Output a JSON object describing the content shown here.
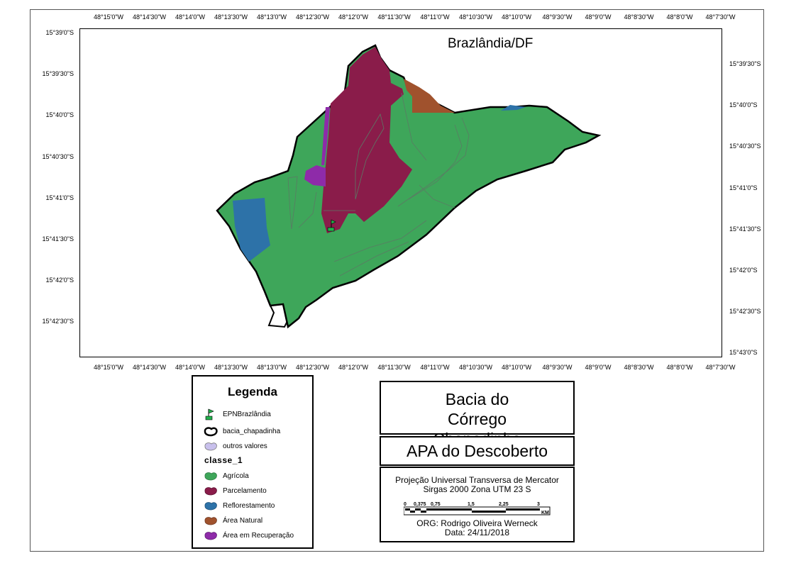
{
  "map": {
    "title": "Brazlândia/DF",
    "top_ticks": [
      "48°15'0\"W",
      "48°14'30\"W",
      "48°14'0\"W",
      "48°13'30\"W",
      "48°13'0\"W",
      "48°12'30\"W",
      "48°12'0\"W",
      "48°11'30\"W",
      "48°11'0\"W",
      "48°10'30\"W",
      "48°10'0\"W",
      "48°9'30\"W",
      "48°9'0\"W",
      "48°8'30\"W",
      "48°8'0\"W",
      "48°7'30\"W"
    ],
    "bottom_ticks": [
      "48°15'0\"W",
      "48°14'30\"W",
      "48°14'0\"W",
      "48°13'30\"W",
      "48°13'0\"W",
      "48°12'30\"W",
      "48°12'0\"W",
      "48°11'30\"W",
      "48°11'0\"W",
      "48°10'30\"W",
      "48°10'0\"W",
      "48°9'30\"W",
      "48°9'0\"W",
      "48°8'30\"W",
      "48°8'0\"W",
      "48°7'30\"W"
    ],
    "left_ticks": [
      "15°39'0\"S",
      "15°39'30\"S",
      "15°40'0\"S",
      "15°40'30\"S",
      "15°41'0\"S",
      "15°41'30\"S",
      "15°42'0\"S",
      "15°42'30\"S"
    ],
    "right_ticks": [
      "15°39'30\"S",
      "15°40'0\"S",
      "15°40'30\"S",
      "15°41'0\"S",
      "15°41'30\"S",
      "15°42'0\"S",
      "15°42'30\"S",
      "15°43'0\"S"
    ]
  },
  "legend": {
    "title": "Legenda",
    "items": [
      {
        "label": "EPNBrazlândia",
        "icon": "green-flag-icon",
        "color": "#22b14c"
      },
      {
        "label": "bacia_chapadinha",
        "icon": "basin-outline-icon",
        "color": "#000000"
      },
      {
        "label": "outros valores",
        "icon": "lavender-polygon-icon",
        "color": "#c8c0ec"
      }
    ],
    "class_title": "classe_1",
    "classes": [
      {
        "label": "Agrícola",
        "color": "#3ea65a"
      },
      {
        "label": "Parcelamento",
        "color": "#8a1c4a"
      },
      {
        "label": "Reflorestamento",
        "color": "#2d72a8"
      },
      {
        "label": "Área Natural",
        "color": "#a0522d"
      },
      {
        "label": "Área em Recuperação",
        "color": "#8e2ba9"
      }
    ]
  },
  "info": {
    "title": "Bacia do Córrego Chapadinha",
    "subtitle": "APA do Descoberto",
    "projection_line1": "Projeção Universal Transversa de Mercator",
    "projection_line2": "Sirgas 2000 Zona UTM 23 S",
    "scale_labels": [
      "0",
      "0,375",
      "0,75",
      "1,5",
      "2,25",
      "3"
    ],
    "scale_unit": "KM",
    "author": "ORG: Rodrigo Oliveira Werneck",
    "date": "Data: 24/11/2018"
  }
}
